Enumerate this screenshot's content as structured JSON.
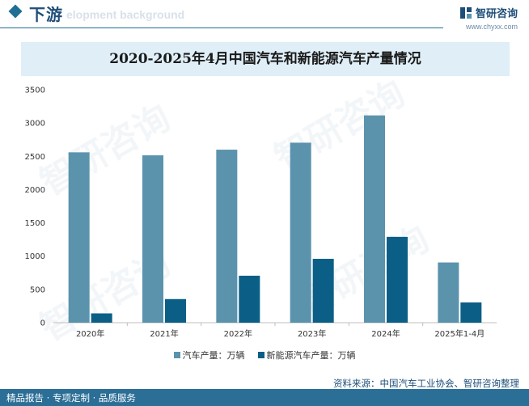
{
  "header": {
    "title": "下游",
    "subtitle": "elopment background",
    "brand_name": "智研咨询",
    "brand_url": "www.chyxx.com"
  },
  "chart_data": {
    "type": "bar",
    "title": "2020-2025年4月中国汽车和新能源汽车产量情况",
    "categories": [
      "2020年",
      "2021年",
      "2022年",
      "2023年",
      "2024年",
      "2025年1-4月"
    ],
    "series": [
      {
        "name": "汽车产量：万辆",
        "color": "#5b93ad",
        "values": [
          2560,
          2515,
          2600,
          2705,
          3115,
          905
        ]
      },
      {
        "name": "新能源汽车产量：万辆",
        "color": "#0b5f86",
        "values": [
          140,
          355,
          706,
          960,
          1290,
          305
        ]
      }
    ],
    "yticks": [
      "0",
      "500",
      "1000",
      "1500",
      "2000",
      "2500",
      "3000",
      "3500"
    ],
    "ylim": [
      0,
      3500
    ],
    "grid": false,
    "legend_position": "bottom"
  },
  "footer": {
    "source": "资料来源：中国汽车工业协会、智研咨询整理",
    "tagline": "精品报告 · 专项定制 · 品质服务"
  },
  "watermark": {
    "text": "智研咨询"
  }
}
